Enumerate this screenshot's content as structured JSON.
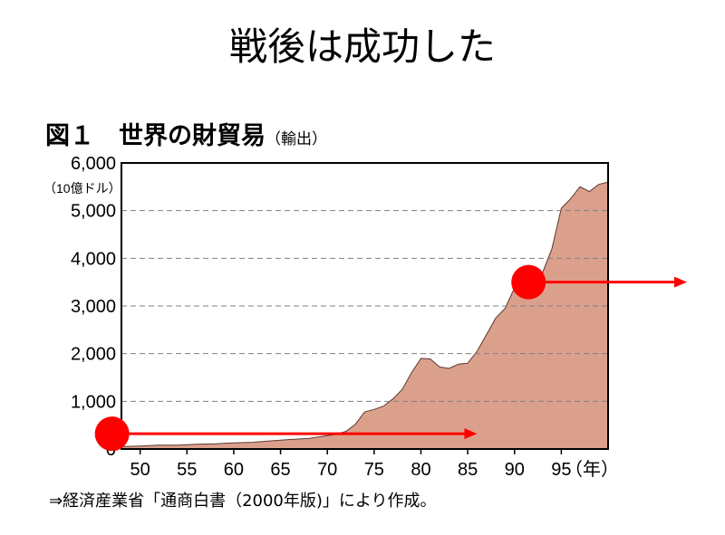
{
  "slide": {
    "title": "戦後は成功した"
  },
  "figure": {
    "title": "図１　世界の財貿易",
    "subtitle": "（輸出）",
    "source": "⇒経済産業省「通商白書（2000年版)」により作成。"
  },
  "chart_data": {
    "type": "area",
    "ylabel": "（10億ドル）",
    "xunit": "（年）",
    "ylim": [
      0,
      6000
    ],
    "xlim": [
      1948,
      2000
    ],
    "yticks": [
      0,
      1000,
      2000,
      3000,
      4000,
      5000,
      6000
    ],
    "yticklabels": [
      "0",
      "1,000",
      "2,000",
      "3,000",
      "4,000",
      "5,000",
      "6,000"
    ],
    "xticks": [
      1950,
      1955,
      1960,
      1965,
      1970,
      1975,
      1980,
      1985,
      1990,
      1995
    ],
    "xticklabels": [
      "50",
      "55",
      "60",
      "65",
      "70",
      "75",
      "80",
      "85",
      "90",
      "95"
    ],
    "grid": "horizontal dashed",
    "fill_color": "#dba08c",
    "series": [
      {
        "x": [
          1948,
          1950,
          1952,
          1954,
          1956,
          1958,
          1960,
          1962,
          1964,
          1966,
          1968,
          1970,
          1971,
          1972,
          1973,
          1974,
          1975,
          1976,
          1977,
          1978,
          1979,
          1980,
          1981,
          1982,
          1983,
          1984,
          1985,
          1986,
          1987,
          1988,
          1989,
          1990,
          1991,
          1992,
          1993,
          1994,
          1995,
          1996,
          1997,
          1998,
          1999,
          2000
        ],
        "y": [
          50,
          60,
          80,
          80,
          100,
          110,
          130,
          140,
          170,
          200,
          220,
          280,
          310,
          370,
          520,
          780,
          830,
          900,
          1050,
          1250,
          1600,
          1900,
          1890,
          1720,
          1690,
          1780,
          1800,
          2050,
          2400,
          2750,
          2950,
          3380,
          3450,
          3750,
          3700,
          4200,
          5050,
          5250,
          5500,
          5400,
          5550,
          5600
        ]
      }
    ],
    "annotations": [
      {
        "type": "marker-arrow",
        "color": "#ff0000",
        "y": 320,
        "x_start": 1947,
        "x_end": 1986
      },
      {
        "type": "marker-arrow",
        "color": "#ff0000",
        "y": 3500,
        "x_start": 1991.5,
        "x_end": 2010
      }
    ]
  }
}
